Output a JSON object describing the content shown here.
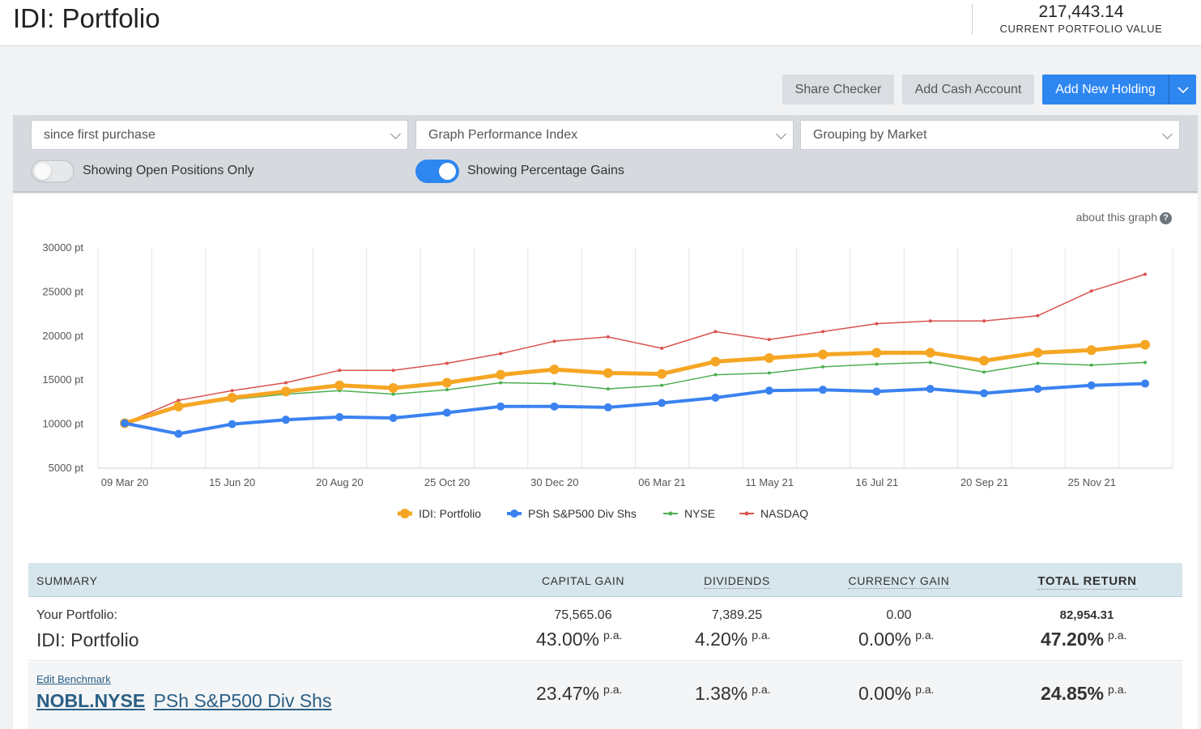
{
  "header": {
    "title": "IDI: Portfolio",
    "portfolio_value": "217,443.14",
    "portfolio_value_label": "CURRENT PORTFOLIO VALUE"
  },
  "actions": {
    "share_checker": "Share Checker",
    "add_cash_account": "Add Cash Account",
    "add_new_holding": "Add New Holding"
  },
  "controls": {
    "period_select": "since first purchase",
    "graph_type_select": "Graph Performance Index",
    "grouping_select": "Grouping by Market",
    "open_positions_toggle": {
      "label": "Showing Open Positions Only",
      "on": false
    },
    "percentage_gains_toggle": {
      "label": "Showing Percentage Gains",
      "on": true
    }
  },
  "chart": {
    "about_link": "about this graph",
    "help_glyph": "?"
  },
  "chart_data": {
    "type": "line",
    "title": "",
    "ylim": [
      5000,
      30000
    ],
    "y_ticks": [
      5000,
      10000,
      15000,
      20000,
      25000,
      30000
    ],
    "y_tick_labels": [
      "5000 pt",
      "10000 pt",
      "15000 pt",
      "20000 pt",
      "25000 pt",
      "30000 pt"
    ],
    "x_tick_labels": [
      "09 Mar 20",
      "15 Jun 20",
      "20 Aug 20",
      "25 Oct 20",
      "30 Dec 20",
      "06 Mar 21",
      "11 May 21",
      "16 Jul 21",
      "20 Sep 21",
      "25 Nov 21"
    ],
    "grid": true,
    "legend_position": "bottom",
    "series": [
      {
        "name": "IDI: Portfolio",
        "color": "#f5a623",
        "values": [
          10100,
          12000,
          13000,
          13700,
          14400,
          14100,
          14700,
          15600,
          16200,
          15800,
          15700,
          17100,
          17500,
          17900,
          18100,
          18100,
          17200,
          18100,
          18400,
          19000
        ]
      },
      {
        "name": "PSh S&P500 Div Shs",
        "color": "#3b82f0",
        "values": [
          10100,
          8900,
          10000,
          10500,
          10800,
          10700,
          11300,
          12000,
          12000,
          11900,
          12400,
          13000,
          13800,
          13900,
          13700,
          14000,
          13500,
          14000,
          14400,
          14600
        ]
      },
      {
        "name": "NYSE",
        "color": "#4caf50",
        "values": [
          10100,
          11900,
          12800,
          13400,
          13800,
          13400,
          13900,
          14700,
          14600,
          14000,
          14400,
          15600,
          15800,
          16500,
          16800,
          17000,
          15900,
          16900,
          16700,
          17000
        ]
      },
      {
        "name": "NASDAQ",
        "color": "#d9534f",
        "values": [
          10100,
          12700,
          13800,
          14700,
          16100,
          16100,
          16900,
          18000,
          19400,
          19900,
          18600,
          20500,
          19600,
          20500,
          21400,
          21700,
          21700,
          22300,
          25100,
          27000
        ]
      }
    ]
  },
  "summary": {
    "headers": {
      "summary": "SUMMARY",
      "capital_gain": "CAPITAL GAIN",
      "dividends": "DIVIDENDS",
      "currency_gain": "CURRENCY GAIN",
      "total_return": "TOTAL RETURN"
    },
    "portfolio_row": {
      "label": "Your Portfolio:",
      "name": "IDI: Portfolio",
      "capital_gain_value": "75,565.06",
      "capital_gain_pct": "43.00%",
      "dividends_value": "7,389.25",
      "dividends_pct": "4.20%",
      "currency_gain_value": "0.00",
      "currency_gain_pct": "0.00%",
      "total_return_value": "82,954.31",
      "total_return_pct": "47.20%",
      "pa": "p.a."
    },
    "benchmark_row": {
      "edit_link": "Edit Benchmark",
      "code": "NOBL.NYSE",
      "name": "PSh S&P500 Div Shs",
      "capital_gain_pct": "23.47%",
      "dividends_pct": "1.38%",
      "currency_gain_pct": "0.00%",
      "total_return_pct": "24.85%",
      "pa": "p.a."
    }
  }
}
